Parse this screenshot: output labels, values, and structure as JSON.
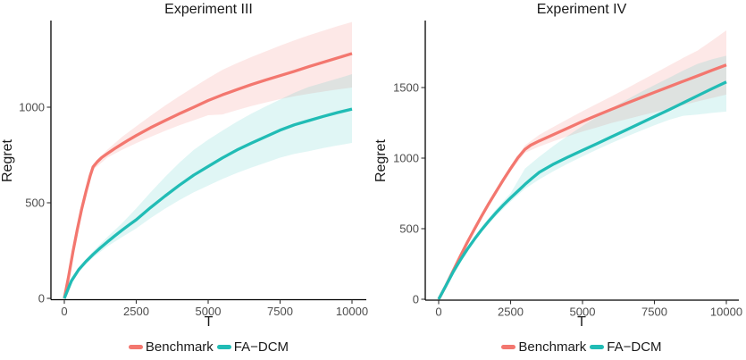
{
  "figure": {
    "background": "#ffffff",
    "text_color": "#1a1a1a",
    "tick_label_color": "#4d4d4d",
    "axis_line_color": "#000000"
  },
  "chart_data": [
    {
      "type": "line",
      "title": "Experiment III",
      "xlabel": "T",
      "ylabel": "Regret",
      "xlim": [
        0,
        10000
      ],
      "ylim": [
        0,
        1455
      ],
      "x_ticks": [
        0,
        2500,
        5000,
        7500,
        10000
      ],
      "y_ticks": [
        0,
        500,
        1000
      ],
      "grid": false,
      "legend_position": "bottom-center",
      "series": [
        {
          "name": "Benchmark",
          "color": "#F3776F",
          "fill_opacity": 0.17,
          "points": [
            [
              0,
              0
            ],
            [
              150,
              115
            ],
            [
              300,
              245
            ],
            [
              450,
              360
            ],
            [
              600,
              465
            ],
            [
              750,
              558
            ],
            [
              900,
              642
            ],
            [
              1000,
              688
            ],
            [
              1150,
              715
            ],
            [
              1300,
              737
            ],
            [
              1500,
              758
            ],
            [
              1750,
              783
            ],
            [
              2000,
              807
            ],
            [
              2250,
              830
            ],
            [
              2500,
              852
            ],
            [
              3000,
              893
            ],
            [
              3500,
              930
            ],
            [
              4000,
              966
            ],
            [
              4500,
              1000
            ],
            [
              5000,
              1035
            ],
            [
              5500,
              1065
            ],
            [
              6000,
              1092
            ],
            [
              6500,
              1118
            ],
            [
              7000,
              1142
            ],
            [
              7500,
              1165
            ],
            [
              8000,
              1188
            ],
            [
              8500,
              1212
            ],
            [
              9000,
              1235
            ],
            [
              9500,
              1258
            ],
            [
              10000,
              1281
            ]
          ],
          "band": [
            [
              0,
              0,
              0
            ],
            [
              500,
              392,
              405
            ],
            [
              1000,
              672,
              702
            ],
            [
              1500,
              737,
              778
            ],
            [
              2000,
              776,
              844
            ],
            [
              2500,
              812,
              900
            ],
            [
              3000,
              845,
              955
            ],
            [
              3500,
              876,
              1008
            ],
            [
              4000,
              905,
              1058
            ],
            [
              4500,
              932,
              1105
            ],
            [
              5000,
              958,
              1152
            ],
            [
              5500,
              962,
              1196
            ],
            [
              6000,
              985,
              1230
            ],
            [
              6500,
              1006,
              1262
            ],
            [
              7000,
              1025,
              1292
            ],
            [
              7500,
              1042,
              1322
            ],
            [
              8000,
              1057,
              1350
            ],
            [
              8500,
              1070,
              1376
            ],
            [
              9000,
              1082,
              1400
            ],
            [
              9500,
              1093,
              1424
            ],
            [
              10000,
              1103,
              1446
            ]
          ]
        },
        {
          "name": "FA−DCM",
          "color": "#21BCB5",
          "fill_opacity": 0.14,
          "points": [
            [
              0,
              0
            ],
            [
              250,
              92
            ],
            [
              500,
              150
            ],
            [
              750,
              193
            ],
            [
              1000,
              230
            ],
            [
              1250,
              264
            ],
            [
              1500,
              296
            ],
            [
              1750,
              326
            ],
            [
              2000,
              356
            ],
            [
              2250,
              384
            ],
            [
              2500,
              411
            ],
            [
              3000,
              475
            ],
            [
              3500,
              535
            ],
            [
              4000,
              592
            ],
            [
              4500,
              645
            ],
            [
              5000,
              690
            ],
            [
              5500,
              735
            ],
            [
              6000,
              776
            ],
            [
              6500,
              812
            ],
            [
              7000,
              846
            ],
            [
              7500,
              880
            ],
            [
              8000,
              908
            ],
            [
              8500,
              930
            ],
            [
              9000,
              952
            ],
            [
              9500,
              972
            ],
            [
              10000,
              990
            ]
          ],
          "band": [
            [
              0,
              0,
              0
            ],
            [
              500,
              142,
              158
            ],
            [
              1000,
              213,
              247
            ],
            [
              1500,
              272,
              322
            ],
            [
              2000,
              320,
              392
            ],
            [
              2500,
              366,
              471
            ],
            [
              3000,
              420,
              555
            ],
            [
              3500,
              469,
              635
            ],
            [
              4000,
              514,
              710
            ],
            [
              4500,
              555,
              777
            ],
            [
              5000,
              590,
              830
            ],
            [
              5500,
              625,
              878
            ],
            [
              6000,
              656,
              924
            ],
            [
              6500,
              684,
              966
            ],
            [
              7000,
              710,
              1004
            ],
            [
              7500,
              736,
              1040
            ],
            [
              8000,
              756,
              1076
            ],
            [
              8500,
              770,
              1106
            ],
            [
              9000,
              786,
              1128
            ],
            [
              9500,
              800,
              1150
            ],
            [
              10000,
              813,
              1173
            ]
          ]
        }
      ]
    },
    {
      "type": "line",
      "title": "Experiment IV",
      "xlabel": "T",
      "ylabel": "Regret",
      "xlim": [
        0,
        10000
      ],
      "ylim": [
        0,
        1975
      ],
      "x_ticks": [
        0,
        2500,
        5000,
        7500,
        10000
      ],
      "y_ticks": [
        0,
        500,
        1000,
        1500
      ],
      "grid": false,
      "legend_position": "bottom-center",
      "series": [
        {
          "name": "Benchmark",
          "color": "#F3776F",
          "fill_opacity": 0.17,
          "points": [
            [
              0,
              0
            ],
            [
              250,
              95
            ],
            [
              500,
              200
            ],
            [
              750,
              305
            ],
            [
              1000,
              405
            ],
            [
              1250,
              500
            ],
            [
              1500,
              592
            ],
            [
              1750,
              680
            ],
            [
              2000,
              764
            ],
            [
              2250,
              846
            ],
            [
              2500,
              926
            ],
            [
              2750,
              1002
            ],
            [
              3000,
              1062
            ],
            [
              3200,
              1092
            ],
            [
              3500,
              1122
            ],
            [
              4000,
              1168
            ],
            [
              4500,
              1214
            ],
            [
              5000,
              1260
            ],
            [
              5500,
              1303
            ],
            [
              6000,
              1345
            ],
            [
              6500,
              1386
            ],
            [
              7000,
              1426
            ],
            [
              7500,
              1466
            ],
            [
              8000,
              1505
            ],
            [
              8500,
              1544
            ],
            [
              9000,
              1583
            ],
            [
              9500,
              1622
            ],
            [
              10000,
              1660
            ]
          ],
          "band": [
            [
              0,
              0,
              0
            ],
            [
              500,
              196,
              205
            ],
            [
              1000,
              398,
              413
            ],
            [
              1500,
              582,
              603
            ],
            [
              2000,
              750,
              780
            ],
            [
              2500,
              908,
              945
            ],
            [
              3000,
              1038,
              1090
            ],
            [
              3500,
              1082,
              1165
            ],
            [
              4000,
              1120,
              1222
            ],
            [
              4500,
              1155,
              1278
            ],
            [
              5000,
              1188,
              1332
            ],
            [
              5500,
              1218,
              1385
            ],
            [
              6000,
              1248,
              1437
            ],
            [
              6500,
              1274,
              1490
            ],
            [
              7000,
              1300,
              1545
            ],
            [
              7500,
              1325,
              1600
            ],
            [
              8000,
              1350,
              1655
            ],
            [
              8500,
              1376,
              1710
            ],
            [
              9000,
              1402,
              1762
            ],
            [
              9500,
              1426,
              1832
            ],
            [
              10000,
              1450,
              1905
            ]
          ]
        },
        {
          "name": "FA−DCM",
          "color": "#21BCB5",
          "fill_opacity": 0.14,
          "points": [
            [
              0,
              0
            ],
            [
              250,
              95
            ],
            [
              500,
              192
            ],
            [
              750,
              278
            ],
            [
              1000,
              356
            ],
            [
              1250,
              428
            ],
            [
              1500,
              494
            ],
            [
              1750,
              556
            ],
            [
              2000,
              614
            ],
            [
              2250,
              668
            ],
            [
              2500,
              718
            ],
            [
              2750,
              766
            ],
            [
              3000,
              814
            ],
            [
              3250,
              858
            ],
            [
              3500,
              900
            ],
            [
              4000,
              958
            ],
            [
              4500,
              1008
            ],
            [
              5000,
              1055
            ],
            [
              5500,
              1102
            ],
            [
              6000,
              1150
            ],
            [
              6500,
              1198
            ],
            [
              7000,
              1246
            ],
            [
              7500,
              1294
            ],
            [
              8000,
              1342
            ],
            [
              8500,
              1392
            ],
            [
              9000,
              1442
            ],
            [
              9500,
              1492
            ],
            [
              10000,
              1540
            ]
          ],
          "band": [
            [
              0,
              0,
              0
            ],
            [
              500,
              186,
              198
            ],
            [
              1000,
              344,
              368
            ],
            [
              1500,
              478,
              512
            ],
            [
              2000,
              592,
              640
            ],
            [
              2500,
              692,
              752
            ],
            [
              3000,
              782,
              925
            ],
            [
              3500,
              850,
              1010
            ],
            [
              4000,
              908,
              1088
            ],
            [
              4500,
              962,
              1160
            ],
            [
              5000,
              1012,
              1228
            ],
            [
              5500,
              1060,
              1292
            ],
            [
              6000,
              1106,
              1352
            ],
            [
              6500,
              1150,
              1410
            ],
            [
              7000,
              1192,
              1465
            ],
            [
              7500,
              1232,
              1518
            ],
            [
              8000,
              1270,
              1568
            ],
            [
              8500,
              1300,
              1620
            ],
            [
              9000,
              1308,
              1668
            ],
            [
              9500,
              1320,
              1700
            ],
            [
              10000,
              1330,
              1725
            ]
          ]
        }
      ]
    }
  ]
}
